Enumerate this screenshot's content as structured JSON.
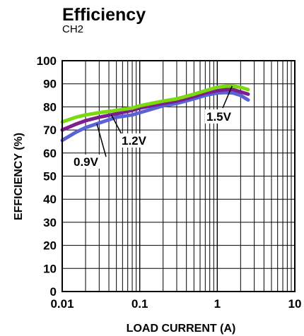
{
  "chart_data": {
    "type": "line",
    "title": "Efficiency",
    "subtitle": "CH2",
    "xlabel": "LOAD CURRENT (A)",
    "ylabel": "EFFICIENCY (%)",
    "x_scale": "log",
    "xlim": [
      0.01,
      10
    ],
    "ylim": [
      0,
      100
    ],
    "grid": true,
    "legend": "none",
    "x_ticks": [
      "0.01",
      "0.1",
      "1",
      "10"
    ],
    "y_ticks": [
      "0",
      "10",
      "20",
      "30",
      "40",
      "50",
      "60",
      "70",
      "80",
      "90",
      "100"
    ],
    "series": [
      {
        "name": "0.9V",
        "color": "#5a63d6",
        "points": [
          [
            0.01,
            65.5
          ],
          [
            0.015,
            69
          ],
          [
            0.02,
            71
          ],
          [
            0.03,
            73
          ],
          [
            0.05,
            75.5
          ],
          [
            0.08,
            76.5
          ],
          [
            0.1,
            77.5
          ],
          [
            0.2,
            80.5
          ],
          [
            0.3,
            81.5
          ],
          [
            0.5,
            83.5
          ],
          [
            0.7,
            85
          ],
          [
            1.0,
            86
          ],
          [
            1.3,
            86.2
          ],
          [
            1.6,
            86
          ],
          [
            2.0,
            85
          ],
          [
            2.5,
            83
          ]
        ]
      },
      {
        "name": "1.2V",
        "color": "#7b1e8f",
        "points": [
          [
            0.01,
            70
          ],
          [
            0.015,
            72.5
          ],
          [
            0.02,
            74
          ],
          [
            0.03,
            75.5
          ],
          [
            0.05,
            77
          ],
          [
            0.08,
            78.5
          ],
          [
            0.1,
            79.5
          ],
          [
            0.2,
            81.5
          ],
          [
            0.3,
            82.5
          ],
          [
            0.5,
            84.5
          ],
          [
            0.7,
            86
          ],
          [
            1.0,
            87
          ],
          [
            1.3,
            87.5
          ],
          [
            1.6,
            87.5
          ],
          [
            2.0,
            86.5
          ],
          [
            2.5,
            85.5
          ]
        ]
      },
      {
        "name": "1.5V",
        "color": "#7dd90f",
        "points": [
          [
            0.01,
            73.5
          ],
          [
            0.015,
            75.5
          ],
          [
            0.02,
            76.5
          ],
          [
            0.03,
            77.5
          ],
          [
            0.05,
            78.5
          ],
          [
            0.08,
            79.5
          ],
          [
            0.1,
            80.5
          ],
          [
            0.2,
            82.5
          ],
          [
            0.3,
            83.5
          ],
          [
            0.5,
            85.5
          ],
          [
            0.7,
            87
          ],
          [
            1.0,
            88.5
          ],
          [
            1.3,
            89
          ],
          [
            1.6,
            89
          ],
          [
            2.0,
            88.5
          ],
          [
            2.5,
            87.5
          ]
        ]
      }
    ],
    "annotations": [
      {
        "text": "0.9V",
        "series": "0.9V"
      },
      {
        "text": "1.2V",
        "series": "1.2V"
      },
      {
        "text": "1.5V",
        "series": "1.5V"
      }
    ]
  }
}
